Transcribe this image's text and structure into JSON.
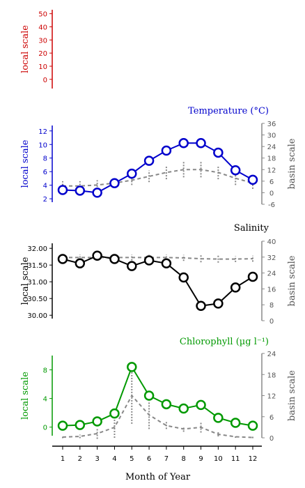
{
  "chart_data": [
    {
      "type": "line",
      "panel": "empty",
      "title": "",
      "ylabel": "local scale",
      "color": "#cc0000",
      "y_ticks": [
        "50",
        "40",
        "30",
        "20",
        "10",
        "0"
      ],
      "ylim": [
        -7,
        53
      ]
    },
    {
      "type": "line",
      "panel": "temperature",
      "title": "Temperature (°C)",
      "ylabel": "local scale",
      "ylabel_right": "basin scale",
      "color": "#0000cc",
      "x": [
        1,
        2,
        3,
        4,
        5,
        6,
        7,
        8,
        9,
        10,
        11,
        12
      ],
      "series": [
        {
          "values": [
            3.3,
            3.2,
            2.9,
            4.3,
            5.7,
            7.6,
            9.1,
            10.2,
            10.2,
            8.8,
            6.2,
            4.8
          ]
        }
      ],
      "basin_series": {
        "values": [
          3.5,
          3.5,
          4.0,
          5.0,
          6.5,
          8.5,
          10.5,
          12.0,
          12.0,
          10.5,
          7.5,
          5.0
        ],
        "error": [
          2.5,
          2.5,
          2.5,
          2.0,
          2.5,
          3.0,
          3.5,
          4.0,
          4.0,
          3.5,
          3.5,
          3.0
        ]
      },
      "y_ticks": [
        "12",
        "10",
        "8",
        "6",
        "4",
        "2"
      ],
      "y_ticks_right": [
        "36",
        "30",
        "24",
        "18",
        "12",
        "6",
        "0",
        "-6"
      ],
      "ylim": [
        1.5,
        12.8
      ],
      "ylim_right": [
        -6,
        36
      ]
    },
    {
      "type": "line",
      "panel": "salinity",
      "title": "Salinity",
      "ylabel": "local scale",
      "ylabel_right": "basin scale",
      "color": "#000000",
      "x": [
        1,
        2,
        3,
        4,
        5,
        6,
        7,
        8,
        9,
        10,
        11,
        12
      ],
      "series": [
        {
          "values": [
            31.68,
            31.55,
            31.78,
            31.68,
            31.47,
            31.64,
            31.55,
            31.13,
            30.28,
            30.35,
            30.83,
            31.15
          ]
        }
      ],
      "basin_series": {
        "values": [
          31.8,
          31.8,
          31.8,
          31.8,
          31.8,
          31.8,
          31.8,
          31.6,
          31.2,
          31.0,
          31.0,
          31.2
        ],
        "error": [
          1.5,
          1.5,
          1.5,
          1.5,
          1.5,
          1.5,
          1.5,
          1.5,
          1.8,
          1.8,
          1.5,
          1.5
        ]
      },
      "y_ticks": [
        "32.00",
        "31.50",
        "31.00",
        "30.50",
        "30.00"
      ],
      "y_ticks_right": [
        "40",
        "32",
        "24",
        "16",
        "8",
        "0"
      ],
      "ylim": [
        29.9,
        32.15
      ],
      "ylim_right": [
        0,
        40
      ]
    },
    {
      "type": "line",
      "panel": "chlorophyll",
      "title": "Chlorophyll (µg l⁻¹)",
      "ylabel": "local scale",
      "ylabel_right": "basin scale",
      "color": "#009900",
      "x": [
        1,
        2,
        3,
        4,
        5,
        6,
        7,
        8,
        9,
        10,
        11,
        12
      ],
      "series": [
        {
          "values": [
            0.2,
            0.3,
            0.8,
            1.9,
            8.4,
            4.4,
            3.2,
            2.6,
            3.1,
            1.3,
            0.6,
            0.2
          ]
        }
      ],
      "basin_series": {
        "values": [
          0.2,
          0.4,
          1.2,
          3.0,
          12.0,
          6.5,
          3.5,
          2.5,
          3.0,
          1.0,
          0.3,
          0.1
        ],
        "error": [
          0.3,
          0.5,
          1.5,
          3.0,
          8.0,
          4.0,
          1.0,
          0.8,
          1.5,
          0.6,
          0.3,
          0.2
        ]
      },
      "y_ticks": [
        "8",
        "4",
        "0"
      ],
      "y_ticks_right": [
        "24",
        "18",
        "12",
        "6",
        "0"
      ],
      "ylim": [
        -1.2,
        10.0
      ],
      "ylim_right": [
        0,
        24
      ]
    }
  ],
  "x_axis": {
    "label": "Month of Year",
    "ticks": [
      "1",
      "2",
      "3",
      "4",
      "5",
      "6",
      "7",
      "8",
      "9",
      "10",
      "11",
      "12"
    ]
  }
}
